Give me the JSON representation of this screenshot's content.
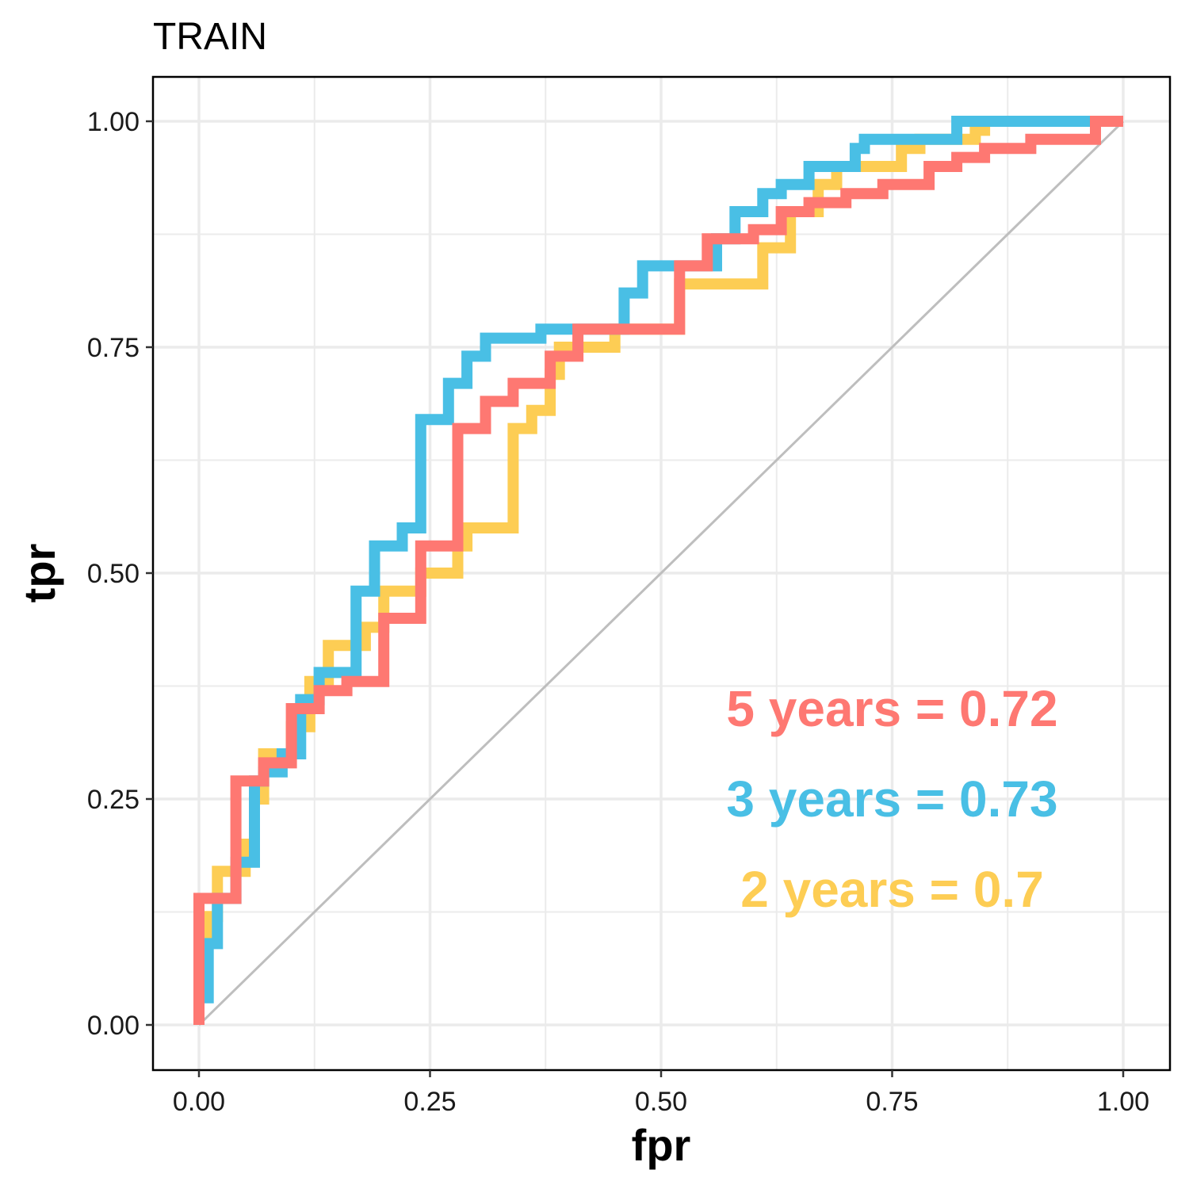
{
  "chart_data": {
    "type": "line",
    "title": "TRAIN",
    "xlabel": "fpr",
    "ylabel": "tpr",
    "xlim": [
      0,
      1
    ],
    "ylim": [
      0,
      1
    ],
    "x_ticks": [
      "0.00",
      "0.25",
      "0.50",
      "0.75",
      "1.00"
    ],
    "y_ticks": [
      "0.00",
      "0.25",
      "0.50",
      "0.75",
      "1.00"
    ],
    "grid": true,
    "reference_line": {
      "x": [
        0,
        1
      ],
      "y": [
        0,
        1
      ],
      "color": "#bebebe"
    },
    "series": [
      {
        "name": "2 years",
        "color": "#FDCD54",
        "label": "2 years =  0.7",
        "x": [
          0.0,
          0.0,
          0.01,
          0.01,
          0.02,
          0.02,
          0.05,
          0.05,
          0.06,
          0.06,
          0.07,
          0.07,
          0.1,
          0.1,
          0.12,
          0.12,
          0.14,
          0.14,
          0.18,
          0.18,
          0.2,
          0.2,
          0.24,
          0.24,
          0.28,
          0.28,
          0.29,
          0.29,
          0.34,
          0.34,
          0.36,
          0.36,
          0.38,
          0.38,
          0.39,
          0.39,
          0.45,
          0.45,
          0.52,
          0.52,
          0.61,
          0.61,
          0.64,
          0.64,
          0.67,
          0.67,
          0.69,
          0.69,
          0.76,
          0.76,
          0.78,
          0.78,
          0.84,
          0.84,
          0.85,
          0.85,
          1.0
        ],
        "y": [
          0.0,
          0.1,
          0.1,
          0.12,
          0.12,
          0.17,
          0.17,
          0.2,
          0.2,
          0.25,
          0.25,
          0.3,
          0.3,
          0.33,
          0.33,
          0.38,
          0.38,
          0.42,
          0.42,
          0.44,
          0.44,
          0.48,
          0.48,
          0.5,
          0.5,
          0.53,
          0.53,
          0.55,
          0.55,
          0.66,
          0.66,
          0.68,
          0.68,
          0.72,
          0.72,
          0.75,
          0.75,
          0.77,
          0.77,
          0.82,
          0.82,
          0.86,
          0.86,
          0.9,
          0.9,
          0.93,
          0.93,
          0.95,
          0.95,
          0.97,
          0.97,
          0.98,
          0.98,
          0.99,
          0.99,
          1.0,
          1.0
        ]
      },
      {
        "name": "3 years",
        "color": "#49BFE5",
        "label": "3 years =  0.73",
        "x": [
          0.0,
          0.0,
          0.01,
          0.01,
          0.02,
          0.02,
          0.04,
          0.04,
          0.06,
          0.06,
          0.07,
          0.07,
          0.09,
          0.09,
          0.11,
          0.11,
          0.13,
          0.13,
          0.17,
          0.17,
          0.19,
          0.19,
          0.22,
          0.22,
          0.24,
          0.24,
          0.27,
          0.27,
          0.29,
          0.29,
          0.31,
          0.31,
          0.37,
          0.37,
          0.46,
          0.46,
          0.48,
          0.48,
          0.56,
          0.56,
          0.58,
          0.58,
          0.61,
          0.61,
          0.63,
          0.63,
          0.66,
          0.66,
          0.71,
          0.71,
          0.72,
          0.72,
          0.82,
          0.82,
          0.91,
          0.91,
          1.0
        ],
        "y": [
          0.0,
          0.03,
          0.03,
          0.09,
          0.09,
          0.14,
          0.14,
          0.18,
          0.18,
          0.27,
          0.27,
          0.28,
          0.28,
          0.3,
          0.3,
          0.36,
          0.36,
          0.39,
          0.39,
          0.48,
          0.48,
          0.53,
          0.53,
          0.55,
          0.55,
          0.67,
          0.67,
          0.71,
          0.71,
          0.74,
          0.74,
          0.76,
          0.76,
          0.77,
          0.77,
          0.81,
          0.81,
          0.84,
          0.84,
          0.87,
          0.87,
          0.9,
          0.9,
          0.92,
          0.92,
          0.93,
          0.93,
          0.95,
          0.95,
          0.97,
          0.97,
          0.98,
          0.98,
          1.0,
          1.0,
          1.0,
          1.0
        ]
      },
      {
        "name": "5 years",
        "color": "#FE7872",
        "label": "5 years =  0.72",
        "x": [
          0.0,
          0.0,
          0.04,
          0.04,
          0.07,
          0.07,
          0.1,
          0.1,
          0.13,
          0.13,
          0.16,
          0.16,
          0.2,
          0.2,
          0.24,
          0.24,
          0.28,
          0.28,
          0.31,
          0.31,
          0.34,
          0.34,
          0.38,
          0.38,
          0.41,
          0.41,
          0.52,
          0.52,
          0.55,
          0.55,
          0.6,
          0.6,
          0.63,
          0.63,
          0.66,
          0.66,
          0.7,
          0.7,
          0.74,
          0.74,
          0.79,
          0.79,
          0.82,
          0.82,
          0.85,
          0.85,
          0.9,
          0.9,
          0.97,
          0.97,
          1.0
        ],
        "y": [
          0.0,
          0.14,
          0.14,
          0.27,
          0.27,
          0.29,
          0.29,
          0.35,
          0.35,
          0.37,
          0.37,
          0.38,
          0.38,
          0.45,
          0.45,
          0.53,
          0.53,
          0.66,
          0.66,
          0.69,
          0.69,
          0.71,
          0.71,
          0.74,
          0.74,
          0.77,
          0.77,
          0.84,
          0.84,
          0.87,
          0.87,
          0.88,
          0.88,
          0.9,
          0.9,
          0.91,
          0.91,
          0.92,
          0.92,
          0.93,
          0.93,
          0.95,
          0.95,
          0.96,
          0.96,
          0.97,
          0.97,
          0.98,
          0.98,
          1.0,
          1.0
        ]
      }
    ],
    "annotations": [
      {
        "text": "5 years =  0.72",
        "color": "#FE7872",
        "x": 0.75,
        "y": 0.35
      },
      {
        "text": "3 years =  0.73",
        "color": "#49BFE5",
        "x": 0.75,
        "y": 0.25
      },
      {
        "text": "2 years =  0.7",
        "color": "#FDCD54",
        "x": 0.75,
        "y": 0.15
      }
    ]
  }
}
